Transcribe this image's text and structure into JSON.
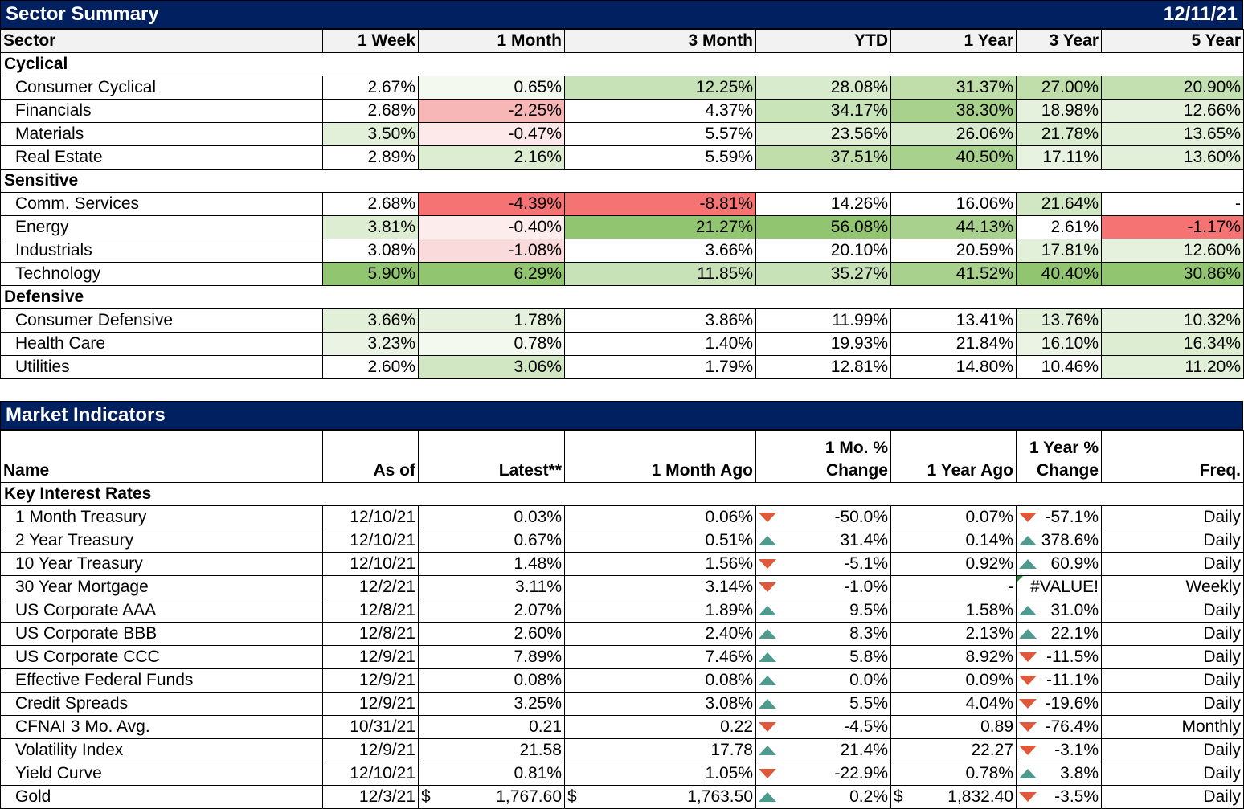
{
  "sector_summary": {
    "title": "Sector Summary",
    "date": "12/11/21",
    "columns": [
      "Sector",
      "1 Week",
      "1 Month",
      "3 Month",
      "YTD",
      "1 Year",
      "3 Year",
      "5 Year"
    ],
    "groups": [
      {
        "name": "Cyclical",
        "rows": [
          {
            "name": "Consumer Cyclical",
            "values": [
              "2.67%",
              "0.65%",
              "12.25%",
              "28.08%",
              "31.37%",
              "27.00%",
              "20.90%"
            ],
            "colors": [
              "#ffffff",
              "#f4f9f0",
              "#c7e2b7",
              "#d8ebcc",
              "#bfdeaa",
              "#bfdeaa",
              "#c3e0b0"
            ]
          },
          {
            "name": "Financials",
            "values": [
              "2.68%",
              "-2.25%",
              "4.37%",
              "34.17%",
              "38.30%",
              "18.98%",
              "12.66%"
            ],
            "colors": [
              "#ffffff",
              "#f7b7b7",
              "#ffffff",
              "#c9e4b9",
              "#a9d18e",
              "#e5f1dc",
              "#e5f1dc"
            ]
          },
          {
            "name": "Materials",
            "values": [
              "3.50%",
              "-0.47%",
              "5.57%",
              "23.56%",
              "26.06%",
              "21.78%",
              "13.65%"
            ],
            "colors": [
              "#e2f0d9",
              "#fde9e9",
              "#ffffff",
              "#e2f0d9",
              "#d8ebcc",
              "#d8ebcc",
              "#e2f0d9"
            ]
          },
          {
            "name": "Real Estate",
            "values": [
              "2.89%",
              "2.16%",
              "5.59%",
              "37.51%",
              "40.50%",
              "17.11%",
              "13.60%"
            ],
            "colors": [
              "#ffffff",
              "#dcedd1",
              "#ffffff",
              "#bfdeaa",
              "#a9d18e",
              "#e7f2e0",
              "#e2f0d9"
            ]
          }
        ]
      },
      {
        "name": "Sensitive",
        "rows": [
          {
            "name": "Comm. Services",
            "values": [
              "2.68%",
              "-4.39%",
              "-8.81%",
              "14.26%",
              "16.06%",
              "21.64%",
              "-"
            ],
            "colors": [
              "#ffffff",
              "#f57373",
              "#f57373",
              "#ffffff",
              "#ffffff",
              "#d1e7c3",
              "#ffffff"
            ]
          },
          {
            "name": "Energy",
            "values": [
              "3.81%",
              "-0.40%",
              "21.27%",
              "56.08%",
              "44.13%",
              "2.61%",
              "-1.17%"
            ],
            "colors": [
              "#dcedd1",
              "#fdecec",
              "#92c56f",
              "#92c56f",
              "#a9d18e",
              "#ffffff",
              "#f57373"
            ]
          },
          {
            "name": "Industrials",
            "values": [
              "3.08%",
              "-1.08%",
              "3.66%",
              "20.10%",
              "20.59%",
              "17.81%",
              "12.60%"
            ],
            "colors": [
              "#ffffff",
              "#fadada",
              "#ffffff",
              "#ffffff",
              "#ffffff",
              "#e2f0d9",
              "#e5f1dc"
            ]
          },
          {
            "name": "Technology",
            "values": [
              "5.90%",
              "6.29%",
              "11.85%",
              "35.27%",
              "41.52%",
              "40.40%",
              "30.86%"
            ],
            "colors": [
              "#92c56f",
              "#92c56f",
              "#c7e2b7",
              "#c7e2b7",
              "#a9d18e",
              "#92c56f",
              "#92c56f"
            ]
          }
        ]
      },
      {
        "name": "Defensive",
        "rows": [
          {
            "name": "Consumer Defensive",
            "values": [
              "3.66%",
              "1.78%",
              "3.86%",
              "11.99%",
              "13.41%",
              "13.76%",
              "10.32%"
            ],
            "colors": [
              "#e2f0d9",
              "#e5f1dc",
              "#ffffff",
              "#ffffff",
              "#ffffff",
              "#e2f0d9",
              "#e5f1dc"
            ]
          },
          {
            "name": "Health Care",
            "values": [
              "3.23%",
              "0.78%",
              "1.40%",
              "19.93%",
              "21.84%",
              "16.10%",
              "16.34%"
            ],
            "colors": [
              "#ebf4e4",
              "#f4f9f0",
              "#ffffff",
              "#ffffff",
              "#ffffff",
              "#ebf4e4",
              "#dcedd1"
            ]
          },
          {
            "name": "Utilities",
            "values": [
              "2.60%",
              "3.06%",
              "1.79%",
              "12.81%",
              "14.80%",
              "10.46%",
              "11.20%"
            ],
            "colors": [
              "#ffffff",
              "#d1e7c3",
              "#ffffff",
              "#ffffff",
              "#ffffff",
              "#ffffff",
              "#e2f0d9"
            ]
          }
        ]
      }
    ]
  },
  "market_indicators": {
    "title": "Market Indicators",
    "columns": [
      "Name",
      "As of",
      "Latest**",
      "1 Month Ago",
      "1 Mo. % Change",
      "1 Year Ago",
      "1 Year % Change",
      "Freq."
    ],
    "group_name": "Key Interest Rates",
    "rows": [
      {
        "name": "1 Month Treasury",
        "as_of": "12/10/21",
        "latest": "0.03%",
        "month_ago": "0.06%",
        "mo_dir": "down",
        "mo_change": "-50.0%",
        "year_ago": "0.07%",
        "yr_dir": "down",
        "yr_change": "-57.1%",
        "freq": "Daily"
      },
      {
        "name": "2 Year Treasury",
        "as_of": "12/10/21",
        "latest": "0.67%",
        "month_ago": "0.51%",
        "mo_dir": "up",
        "mo_change": "31.4%",
        "year_ago": "0.14%",
        "yr_dir": "up",
        "yr_change": "378.6%",
        "freq": "Daily"
      },
      {
        "name": "10 Year Treasury",
        "as_of": "12/10/21",
        "latest": "1.48%",
        "month_ago": "1.56%",
        "mo_dir": "down",
        "mo_change": "-5.1%",
        "year_ago": "0.92%",
        "yr_dir": "up",
        "yr_change": "60.9%",
        "freq": "Daily"
      },
      {
        "name": "30 Year Mortgage",
        "as_of": "12/2/21",
        "latest": "3.11%",
        "month_ago": "3.14%",
        "mo_dir": "down",
        "mo_change": "-1.0%",
        "year_ago": "-",
        "yr_dir": "none",
        "yr_change": "#VALUE!",
        "freq": "Weekly"
      },
      {
        "name": "US Corporate AAA",
        "as_of": "12/8/21",
        "latest": "2.07%",
        "month_ago": "1.89%",
        "mo_dir": "up",
        "mo_change": "9.5%",
        "year_ago": "1.58%",
        "yr_dir": "up",
        "yr_change": "31.0%",
        "freq": "Daily"
      },
      {
        "name": "US Corporate BBB",
        "as_of": "12/8/21",
        "latest": "2.60%",
        "month_ago": "2.40%",
        "mo_dir": "up",
        "mo_change": "8.3%",
        "year_ago": "2.13%",
        "yr_dir": "up",
        "yr_change": "22.1%",
        "freq": "Daily"
      },
      {
        "name": "US Corporate CCC",
        "as_of": "12/9/21",
        "latest": "7.89%",
        "month_ago": "7.46%",
        "mo_dir": "up",
        "mo_change": "5.8%",
        "year_ago": "8.92%",
        "yr_dir": "down",
        "yr_change": "-11.5%",
        "freq": "Daily"
      },
      {
        "name": "Effective Federal Funds",
        "as_of": "12/9/21",
        "latest": "0.08%",
        "month_ago": "0.08%",
        "mo_dir": "up",
        "mo_change": "0.0%",
        "year_ago": "0.09%",
        "yr_dir": "down",
        "yr_change": "-11.1%",
        "freq": "Daily"
      },
      {
        "name": "Credit Spreads",
        "as_of": "12/9/21",
        "latest": "3.25%",
        "month_ago": "3.08%",
        "mo_dir": "up",
        "mo_change": "5.5%",
        "year_ago": "4.04%",
        "yr_dir": "down",
        "yr_change": "-19.6%",
        "freq": "Daily"
      },
      {
        "name": "CFNAI 3 Mo. Avg.",
        "as_of": "10/31/21",
        "latest": "0.21",
        "month_ago": "0.22",
        "mo_dir": "down",
        "mo_change": "-4.5%",
        "year_ago": "0.89",
        "yr_dir": "down",
        "yr_change": "-76.4%",
        "freq": "Monthly"
      },
      {
        "name": "Volatility Index",
        "as_of": "12/9/21",
        "latest": "21.58",
        "month_ago": "17.78",
        "mo_dir": "up",
        "mo_change": "21.4%",
        "year_ago": "22.27",
        "yr_dir": "down",
        "yr_change": "-3.1%",
        "freq": "Daily"
      },
      {
        "name": "Yield Curve",
        "as_of": "12/10/21",
        "latest": "0.81%",
        "month_ago": "1.05%",
        "mo_dir": "down",
        "mo_change": "-22.9%",
        "year_ago": "0.78%",
        "yr_dir": "up",
        "yr_change": "3.8%",
        "freq": "Daily"
      },
      {
        "name": "Gold",
        "as_of": "12/3/21",
        "latest": "1,767.60",
        "latest_currency": "$",
        "month_ago": "1,763.50",
        "month_ago_currency": "$",
        "mo_dir": "up",
        "mo_change": "0.2%",
        "year_ago": "1,832.40",
        "year_ago_currency": "$",
        "yr_dir": "down",
        "yr_change": "-3.5%",
        "freq": "Daily"
      }
    ]
  }
}
